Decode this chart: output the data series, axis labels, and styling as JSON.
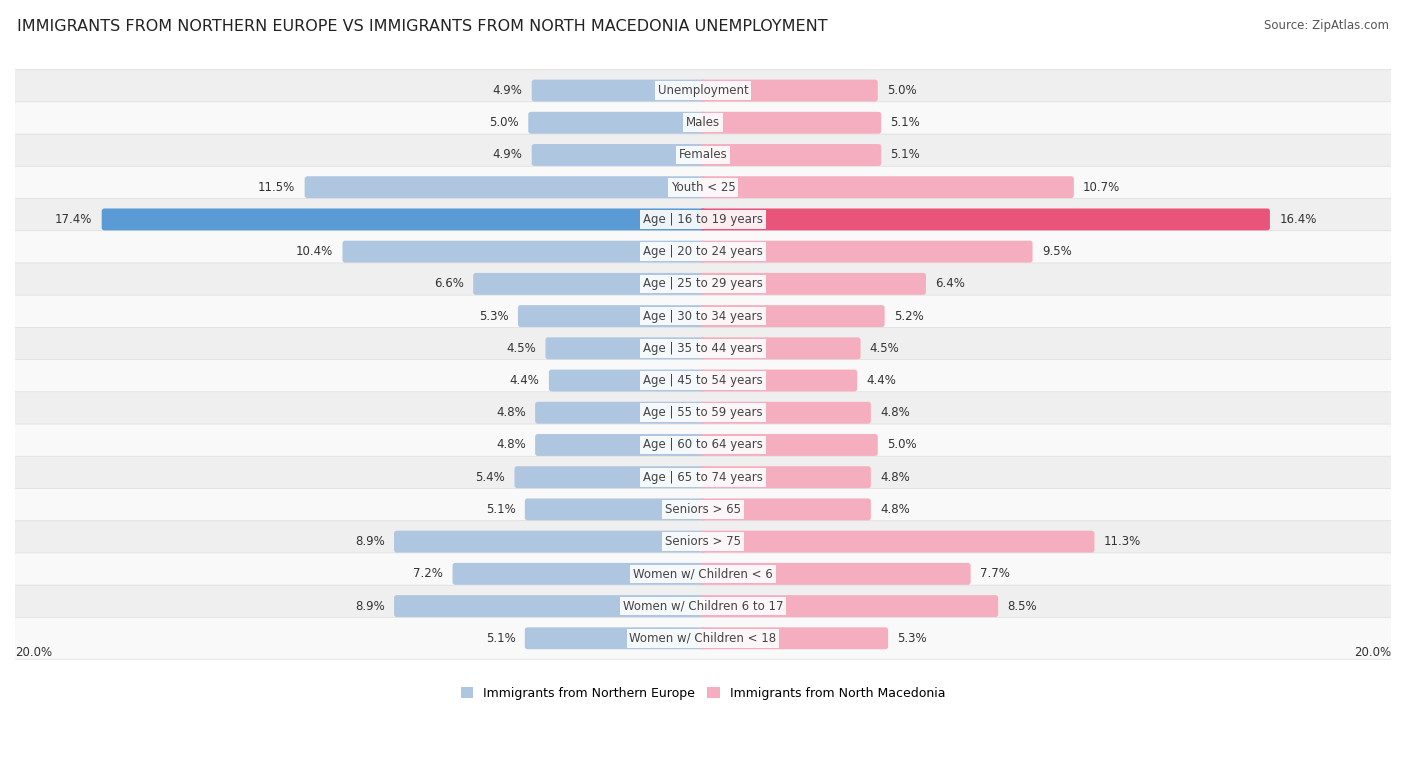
{
  "title": "IMMIGRANTS FROM NORTHERN EUROPE VS IMMIGRANTS FROM NORTH MACEDONIA UNEMPLOYMENT",
  "source": "Source: ZipAtlas.com",
  "categories": [
    "Unemployment",
    "Males",
    "Females",
    "Youth < 25",
    "Age | 16 to 19 years",
    "Age | 20 to 24 years",
    "Age | 25 to 29 years",
    "Age | 30 to 34 years",
    "Age | 35 to 44 years",
    "Age | 45 to 54 years",
    "Age | 55 to 59 years",
    "Age | 60 to 64 years",
    "Age | 65 to 74 years",
    "Seniors > 65",
    "Seniors > 75",
    "Women w/ Children < 6",
    "Women w/ Children 6 to 17",
    "Women w/ Children < 18"
  ],
  "left_values": [
    4.9,
    5.0,
    4.9,
    11.5,
    17.4,
    10.4,
    6.6,
    5.3,
    4.5,
    4.4,
    4.8,
    4.8,
    5.4,
    5.1,
    8.9,
    7.2,
    8.9,
    5.1
  ],
  "right_values": [
    5.0,
    5.1,
    5.1,
    10.7,
    16.4,
    9.5,
    6.4,
    5.2,
    4.5,
    4.4,
    4.8,
    5.0,
    4.8,
    4.8,
    11.3,
    7.7,
    8.5,
    5.3
  ],
  "left_color_normal": "#aec6e0",
  "right_color_normal": "#f5aec0",
  "left_color_highlight": "#5b9bd5",
  "right_color_highlight": "#e8547a",
  "left_label": "Immigrants from Northern Europe",
  "right_label": "Immigrants from North Macedonia",
  "row_bg_light": "#efefef",
  "row_bg_white": "#f9f9f9",
  "x_max": 20.0,
  "title_fontsize": 11.5,
  "source_fontsize": 8.5,
  "value_fontsize": 8.5,
  "category_fontsize": 8.5,
  "legend_fontsize": 9.0,
  "highlight_row": 4
}
